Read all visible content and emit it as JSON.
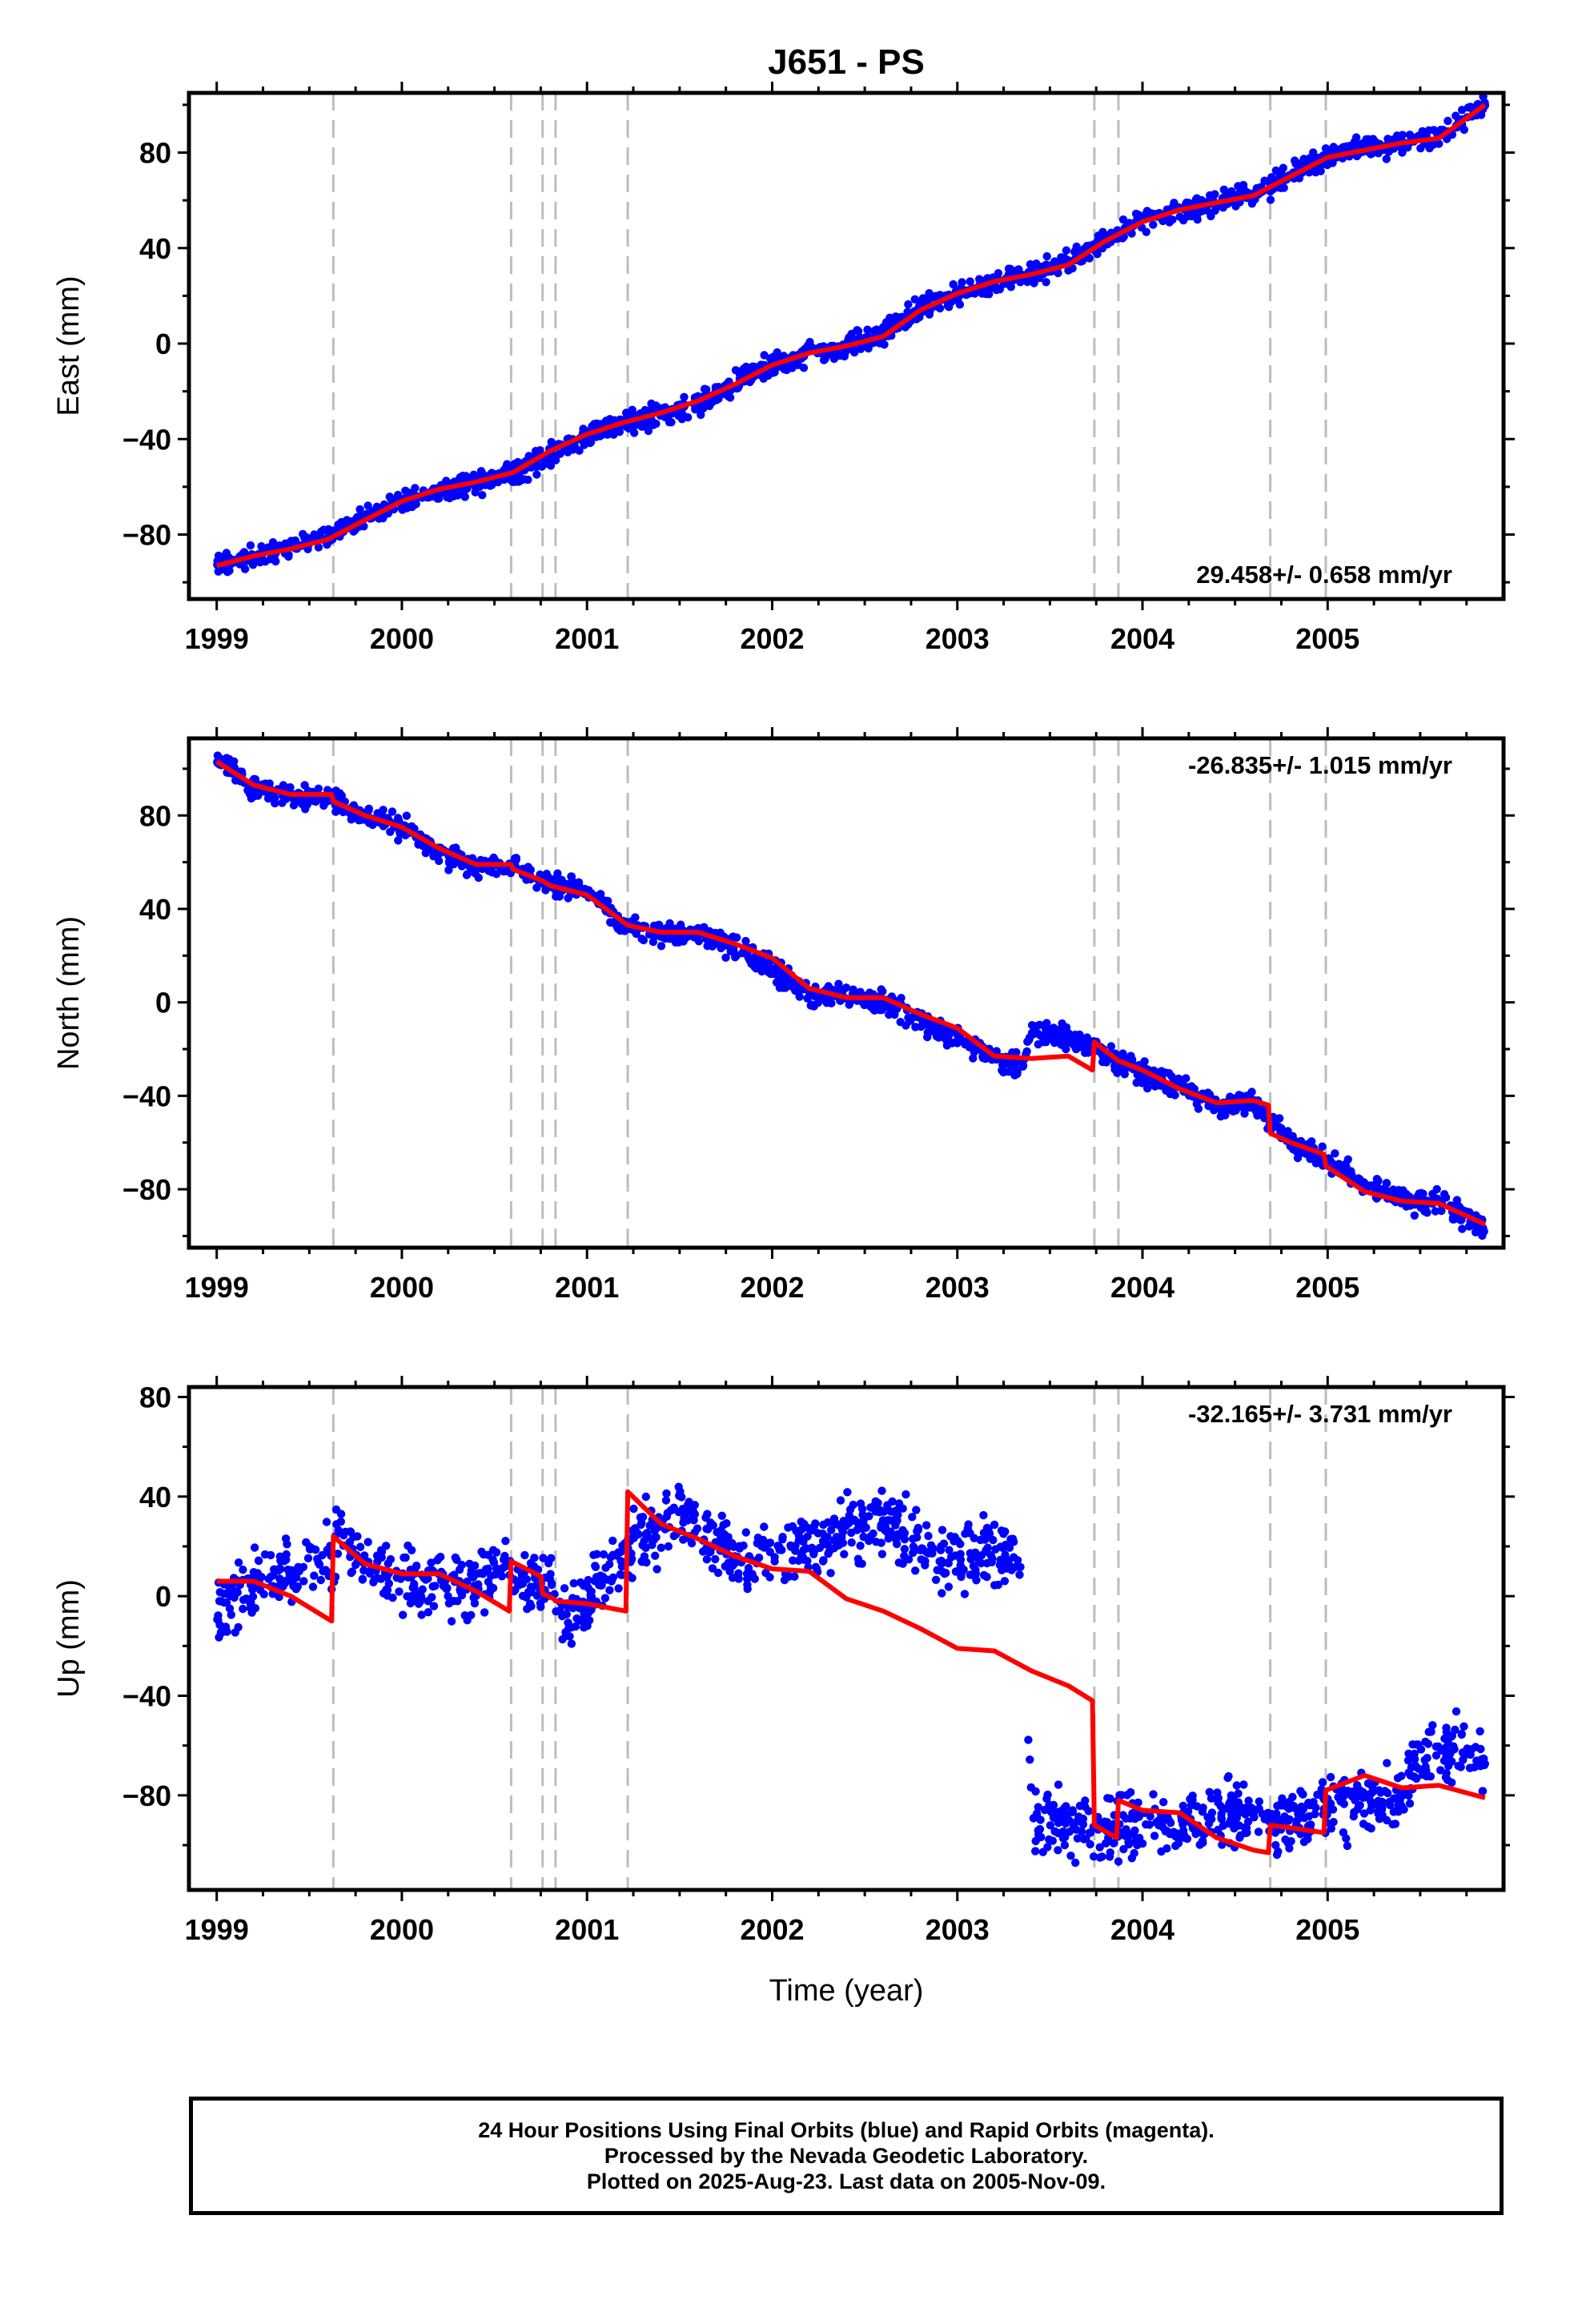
{
  "figure_title": "J651 - PS",
  "chart_data": [
    {
      "type": "scatter",
      "ylabel": "East (mm)",
      "xlabel": "",
      "xlim": [
        1998.85,
        2005.95
      ],
      "ylim": [
        -107,
        105
      ],
      "yticks": [
        -80,
        -40,
        0,
        40,
        80
      ],
      "yticklabels": [
        "−80",
        "−40",
        "0",
        "40",
        "80"
      ],
      "xticks": [
        1999,
        2000,
        2001,
        2002,
        2003,
        2004,
        2005
      ],
      "xticklabels": [
        "1999",
        "2000",
        "2001",
        "2002",
        "2003",
        "2004",
        "2005"
      ],
      "rate_label": "29.458+/- 0.658 mm/yr",
      "rate_position": "bottom-right",
      "grid": false,
      "event_lines": [
        1999.63,
        2000.59,
        2000.76,
        2000.83,
        2001.22,
        2003.74,
        2003.87,
        2004.69,
        2004.99
      ],
      "series": [
        {
          "color": "#0000ff",
          "role": "observations",
          "x": [
            1999.0,
            1999.2,
            1999.4,
            1999.6,
            1999.8,
            2000.0,
            2000.2,
            2000.4,
            2000.6,
            2000.8,
            2001.0,
            2001.2,
            2001.4,
            2001.6,
            2001.8,
            2002.0,
            2002.2,
            2002.4,
            2002.6,
            2002.8,
            2003.0,
            2003.2,
            2003.4,
            2003.6,
            2003.8,
            2004.0,
            2004.2,
            2004.4,
            2004.6,
            2004.8,
            2005.0,
            2005.2,
            2005.4,
            2005.6,
            2005.85
          ],
          "y": [
            -93,
            -89,
            -85,
            -81,
            -73,
            -66,
            -62,
            -58,
            -55,
            -46,
            -38,
            -33,
            -30,
            -25,
            -17,
            -9,
            -4,
            -1,
            4,
            15,
            21,
            26,
            29,
            34,
            44,
            52,
            56,
            59,
            63,
            70,
            79,
            82,
            84,
            87,
            100
          ]
        },
        {
          "color": "#ff0000",
          "role": "model",
          "x": [
            1999.0,
            1999.2,
            1999.4,
            1999.6,
            1999.8,
            2000.0,
            2000.2,
            2000.4,
            2000.6,
            2000.8,
            2001.0,
            2001.2,
            2001.4,
            2001.6,
            2001.8,
            2002.0,
            2002.2,
            2002.4,
            2002.6,
            2002.8,
            2003.0,
            2003.2,
            2003.4,
            2003.6,
            2003.8,
            2004.0,
            2004.2,
            2004.4,
            2004.6,
            2004.8,
            2005.0,
            2005.2,
            2005.4,
            2005.6,
            2005.85
          ],
          "y": [
            -93,
            -89,
            -86,
            -82,
            -74,
            -66,
            -61,
            -58,
            -54,
            -45,
            -38,
            -33,
            -29,
            -24,
            -17,
            -9,
            -4,
            -1,
            3,
            14,
            21,
            26,
            29,
            33,
            43,
            51,
            56,
            59,
            62,
            70,
            78,
            81,
            84,
            86,
            100
          ]
        }
      ]
    },
    {
      "type": "scatter",
      "ylabel": "North (mm)",
      "xlabel": "",
      "xlim": [
        1998.85,
        2005.95
      ],
      "ylim": [
        -105,
        113
      ],
      "yticks": [
        -80,
        -40,
        0,
        40,
        80
      ],
      "yticklabels": [
        "−80",
        "−40",
        "0",
        "40",
        "80"
      ],
      "xticks": [
        1999,
        2000,
        2001,
        2002,
        2003,
        2004,
        2005
      ],
      "xticklabels": [
        "1999",
        "2000",
        "2001",
        "2002",
        "2003",
        "2004",
        "2005"
      ],
      "rate_label": "-26.835+/- 1.015 mm/yr",
      "rate_position": "top-right",
      "grid": false,
      "event_lines": [
        1999.63,
        2000.59,
        2000.76,
        2000.83,
        2001.22,
        2003.74,
        2003.87,
        2004.69,
        2004.99
      ],
      "series": [
        {
          "color": "#0000ff",
          "role": "observations",
          "x": [
            1999.0,
            1999.2,
            1999.4,
            1999.6,
            1999.8,
            2000.0,
            2000.2,
            2000.4,
            2000.6,
            2000.8,
            2001.0,
            2001.2,
            2001.4,
            2001.6,
            2001.8,
            2002.0,
            2002.2,
            2002.4,
            2002.6,
            2002.8,
            2003.0,
            2003.2,
            2003.35,
            2003.4,
            2003.6,
            2003.8,
            2004.0,
            2004.2,
            2004.4,
            2004.6,
            2004.8,
            2005.0,
            2005.2,
            2005.4,
            2005.6,
            2005.85
          ],
          "y": [
            105,
            92,
            88,
            88,
            80,
            75,
            64,
            58,
            58,
            50,
            48,
            32,
            30,
            30,
            24,
            15,
            3,
            2,
            0,
            -8,
            -15,
            -23,
            -28,
            -13,
            -15,
            -22,
            -30,
            -36,
            -44,
            -43,
            -60,
            -67,
            -78,
            -85,
            -85,
            -97
          ]
        },
        {
          "color": "#ff0000",
          "role": "model",
          "x": [
            1999.0,
            1999.2,
            1999.4,
            1999.62,
            1999.63,
            1999.8,
            2000.0,
            2000.2,
            2000.4,
            2000.59,
            2000.6,
            2000.76,
            2000.8,
            2001.0,
            2001.22,
            2001.4,
            2001.6,
            2001.8,
            2002.0,
            2002.2,
            2002.4,
            2002.6,
            2002.8,
            2003.0,
            2003.2,
            2003.4,
            2003.6,
            2003.73,
            2003.74,
            2003.87,
            2004.0,
            2004.2,
            2004.4,
            2004.6,
            2004.68,
            2004.69,
            2004.8,
            2004.98,
            2004.99,
            2005.2,
            2005.4,
            2005.6,
            2005.85
          ],
          "y": [
            103,
            93,
            89,
            89,
            86,
            80,
            75,
            66,
            59,
            59,
            57,
            52,
            50,
            46,
            33,
            30,
            30,
            25,
            19,
            6,
            2,
            2,
            -5,
            -11,
            -23,
            -24,
            -23,
            -29,
            -17,
            -25,
            -29,
            -37,
            -43,
            -42,
            -44,
            -56,
            -60,
            -65,
            -70,
            -81,
            -85,
            -86,
            -95
          ]
        }
      ]
    },
    {
      "type": "scatter",
      "ylabel": "Up (mm)",
      "xlabel": "Time (year)",
      "xlim": [
        1998.85,
        2005.95
      ],
      "ylim": [
        -118,
        84
      ],
      "yticks": [
        -80,
        -40,
        0,
        40,
        80
      ],
      "yticklabels": [
        "−80",
        "−40",
        "0",
        "40",
        "80"
      ],
      "xticks": [
        1999,
        2000,
        2001,
        2002,
        2003,
        2004,
        2005
      ],
      "xticklabels": [
        "1999",
        "2000",
        "2001",
        "2002",
        "2003",
        "2004",
        "2005"
      ],
      "rate_label": "-32.165+/- 3.731 mm/yr",
      "rate_position": "top-right",
      "grid": false,
      "event_lines": [
        1999.63,
        2000.59,
        2000.76,
        2000.83,
        2001.22,
        2003.74,
        2003.87,
        2004.69,
        2004.99
      ],
      "series": [
        {
          "color": "#0000ff",
          "role": "observations",
          "x": [
            1999.0,
            1999.2,
            1999.4,
            1999.6,
            1999.7,
            1999.8,
            2000.0,
            2000.2,
            2000.4,
            2000.55,
            2000.6,
            2000.8,
            2000.9,
            2001.0,
            2001.1,
            2001.2,
            2001.3,
            2001.5,
            2001.7,
            2001.9,
            2002.0,
            2002.2,
            2002.4,
            2002.6,
            2002.8,
            2003.0,
            2003.2,
            2003.35,
            2003.4,
            2003.6,
            2003.8,
            2004.0,
            2004.2,
            2004.4,
            2004.6,
            2004.8,
            2005.0,
            2005.2,
            2005.4,
            2005.5,
            2005.7,
            2005.85
          ],
          "y": [
            -5,
            5,
            10,
            15,
            25,
            12,
            8,
            5,
            3,
            15,
            8,
            5,
            -10,
            -5,
            10,
            15,
            22,
            35,
            20,
            15,
            15,
            20,
            25,
            30,
            20,
            15,
            18,
            15,
            -90,
            -90,
            -95,
            -90,
            -92,
            -88,
            -90,
            -90,
            -85,
            -82,
            -80,
            -65,
            -62,
            -70
          ]
        },
        {
          "color": "#ff0000",
          "role": "model",
          "x": [
            1999.0,
            1999.2,
            1999.4,
            1999.62,
            1999.63,
            1999.8,
            2000.0,
            2000.2,
            2000.4,
            2000.58,
            2000.59,
            2000.75,
            2000.76,
            2000.82,
            2000.83,
            2001.0,
            2001.21,
            2001.22,
            2001.4,
            2001.6,
            2001.8,
            2002.0,
            2002.2,
            2002.4,
            2002.6,
            2002.8,
            2003.0,
            2003.2,
            2003.4,
            2003.6,
            2003.73,
            2003.74,
            2003.86,
            2003.87,
            2004.0,
            2004.2,
            2004.4,
            2004.6,
            2004.68,
            2004.69,
            2004.8,
            2004.98,
            2004.99,
            2005.2,
            2005.4,
            2005.6,
            2005.85
          ],
          "y": [
            6,
            6,
            0,
            -10,
            24,
            13,
            9,
            9,
            2,
            -6,
            14,
            8,
            1,
            -1,
            -2,
            -3,
            -6,
            42,
            29,
            23,
            16,
            11,
            10,
            -1,
            -6,
            -13,
            -21,
            -22,
            -30,
            -36,
            -42,
            -92,
            -97,
            -82,
            -86,
            -87,
            -97,
            -102,
            -103,
            -92,
            -93,
            -95,
            -78,
            -72,
            -77,
            -76,
            -81
          ]
        }
      ]
    }
  ],
  "caption_lines": [
    "24 Hour Positions Using Final Orbits (blue) and Rapid Orbits (magenta).",
    "Processed by the Nevada Geodetic Laboratory.",
    "Plotted on 2025-Aug-23. Last data on 2005-Nov-09."
  ]
}
